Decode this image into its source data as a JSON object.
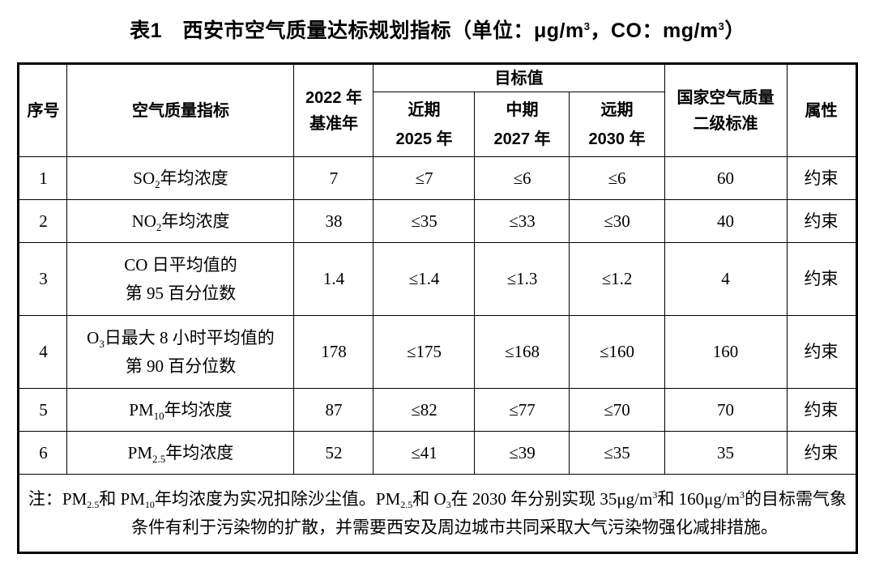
{
  "title": {
    "p1": "表1　西安市空气质量达标规划指标（单位：μg/m",
    "sup1": "3",
    "p2": "，CO：mg/m",
    "sup2": "3",
    "p3": "）"
  },
  "table": {
    "headers": {
      "serial": "序号",
      "indicator": "空气质量指标",
      "baseline_line1": "2022 年",
      "baseline_line2": "基准年",
      "target": "目标值",
      "near_line1": "近期",
      "near_line2": "2025 年",
      "mid_line1": "中期",
      "mid_line2": "2027 年",
      "far_line1": "远期",
      "far_line2": "2030 年",
      "national_line1": "国家空气质量",
      "national_line2": "二级标准",
      "attribute": "属性"
    },
    "rows": [
      {
        "no": "1",
        "ind": {
          "pre": "SO",
          "sub": "2",
          "post": "年均浓度",
          "line2": ""
        },
        "baseline": "7",
        "near": "≤7",
        "mid": "≤6",
        "far": "≤6",
        "national": "60",
        "attr": "约束"
      },
      {
        "no": "2",
        "ind": {
          "pre": "NO",
          "sub": "2",
          "post": "年均浓度",
          "line2": ""
        },
        "baseline": "38",
        "near": "≤35",
        "mid": "≤33",
        "far": "≤30",
        "national": "40",
        "attr": "约束"
      },
      {
        "no": "3",
        "ind": {
          "pre": "CO 日平均值的",
          "sub": "",
          "post": "",
          "line2": "第 95 百分位数"
        },
        "baseline": "1.4",
        "near": "≤1.4",
        "mid": "≤1.3",
        "far": "≤1.2",
        "national": "4",
        "attr": "约束"
      },
      {
        "no": "4",
        "ind": {
          "pre": "O",
          "sub": "3",
          "post": "日最大 8 小时平均值的",
          "line2": "第 90 百分位数"
        },
        "baseline": "178",
        "near": "≤175",
        "mid": "≤168",
        "far": "≤160",
        "national": "160",
        "attr": "约束"
      },
      {
        "no": "5",
        "ind": {
          "pre": "PM",
          "sub": "10",
          "post": "年均浓度",
          "line2": ""
        },
        "baseline": "87",
        "near": "≤82",
        "mid": "≤77",
        "far": "≤70",
        "national": "70",
        "attr": "约束"
      },
      {
        "no": "6",
        "ind": {
          "pre": "PM",
          "sub": "2.5",
          "post": "年均浓度",
          "line2": ""
        },
        "baseline": "52",
        "near": "≤41",
        "mid": "≤39",
        "far": "≤35",
        "national": "35",
        "attr": "约束"
      }
    ]
  },
  "note": {
    "p1": "注：PM",
    "s1": "2.5",
    "p2": "和 PM",
    "s2": "10",
    "p3": "年均浓度为实况扣除沙尘值。PM",
    "s3": "2.5",
    "p4": "和 O",
    "s4": "3",
    "p5": "在 2030 年分别实现 35μg/m",
    "sup1": "3",
    "p6": "和 160μg/m",
    "sup2": "3",
    "p7": "的目标需气象条件有利于污染物的扩散，并需要西安及周边城市共同采取大气污染物强化减排措施。"
  }
}
